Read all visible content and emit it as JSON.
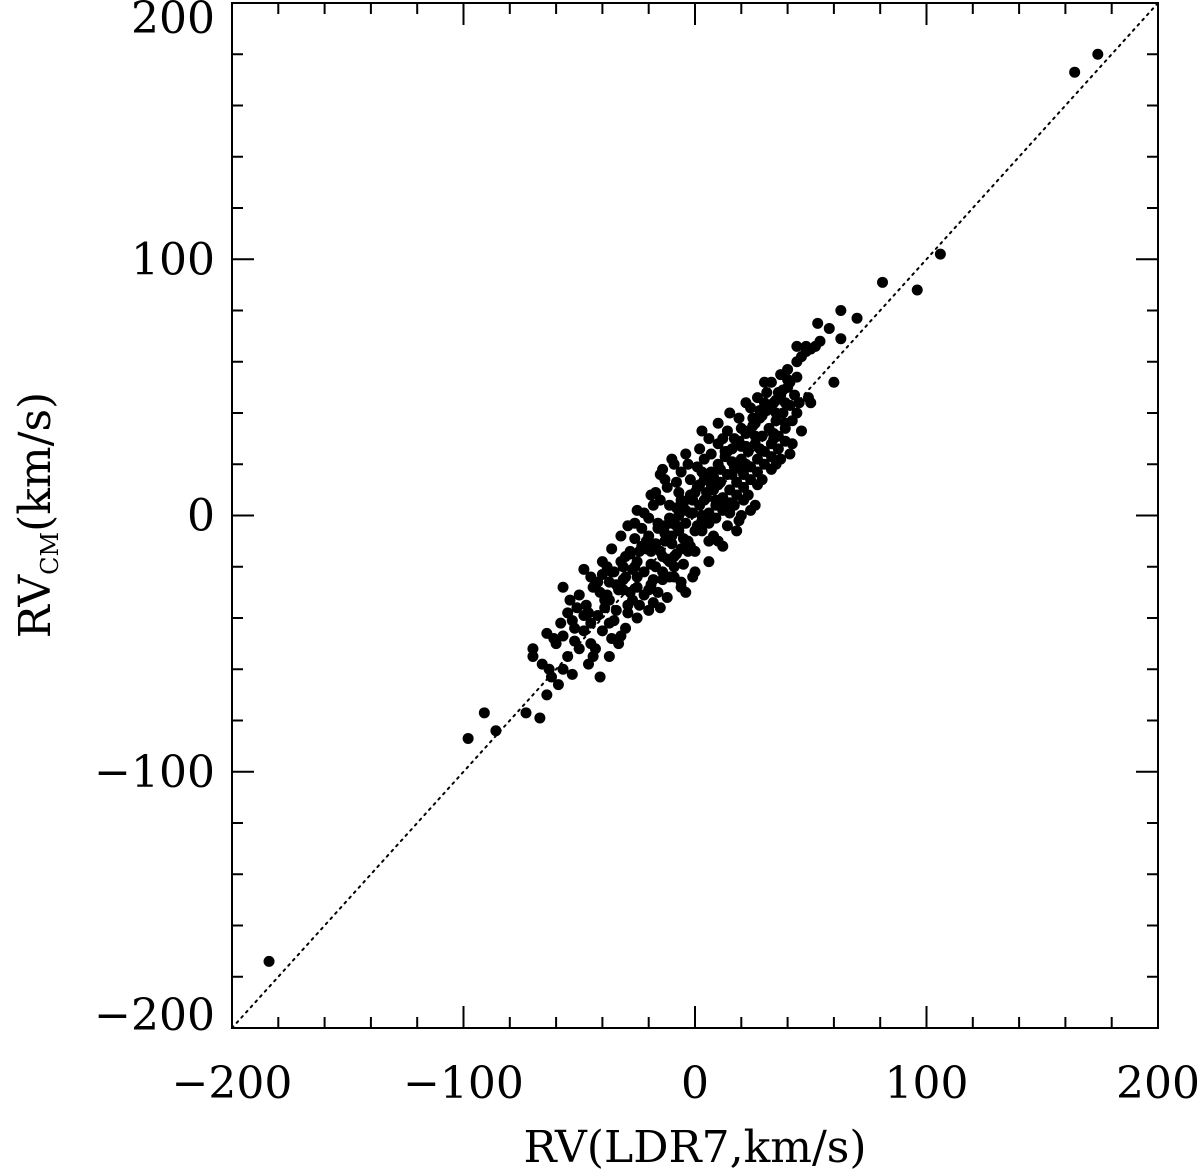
{
  "chart_data": {
    "type": "scatter",
    "xlabel": "RV(LDR7,km/s)",
    "ylabel_main": "RV",
    "ylabel_sub": "CM",
    "ylabel_rest": "(km/s)",
    "xlim": [
      -200,
      200
    ],
    "ylim": [
      -200,
      200
    ],
    "xticks": [
      -200,
      -100,
      0,
      100,
      200
    ],
    "yticks": [
      -200,
      -100,
      0,
      100,
      200
    ],
    "xtick_labels": [
      "−200",
      "−100",
      "0",
      "100",
      "200"
    ],
    "ytick_labels": [
      "−200",
      "−100",
      "0",
      "100",
      "200"
    ],
    "reference_line": {
      "style": "dotted",
      "x": [
        -200,
        200
      ],
      "y": [
        -200,
        200
      ]
    },
    "grid": false,
    "points": [
      [
        -184,
        -174
      ],
      [
        -98,
        -87
      ],
      [
        -91,
        -77
      ],
      [
        -86,
        -84
      ],
      [
        -73,
        -77
      ],
      [
        -67,
        -79
      ],
      [
        -64,
        -70
      ],
      [
        -70,
        -52
      ],
      [
        -70,
        -55
      ],
      [
        -66,
        -58
      ],
      [
        -63,
        -60
      ],
      [
        -62,
        -63
      ],
      [
        -64,
        -46
      ],
      [
        -61,
        -48
      ],
      [
        -57,
        -47
      ],
      [
        -57,
        -60
      ],
      [
        -55,
        -55
      ],
      [
        -52,
        -49
      ],
      [
        -50,
        -52
      ],
      [
        -48,
        -39
      ],
      [
        -45,
        -50
      ],
      [
        -43,
        -52
      ],
      [
        -40,
        -45
      ],
      [
        -39,
        -36
      ],
      [
        -37,
        -33
      ],
      [
        -35,
        -41
      ],
      [
        -33,
        -50
      ],
      [
        -32,
        -47
      ],
      [
        -30,
        -44
      ],
      [
        -28,
        -30
      ],
      [
        -57,
        -28
      ],
      [
        -55,
        -38
      ],
      [
        -53,
        -41
      ],
      [
        -50,
        -31
      ],
      [
        -47,
        -35
      ],
      [
        -45,
        -42
      ],
      [
        -42,
        -26
      ],
      [
        -40,
        -23
      ],
      [
        -38,
        -31
      ],
      [
        -36,
        -22
      ],
      [
        -34,
        -27
      ],
      [
        -32,
        -18
      ],
      [
        -30,
        -24
      ],
      [
        -28,
        -15
      ],
      [
        -26,
        -20
      ],
      [
        -25,
        -28
      ],
      [
        -23,
        -12
      ],
      [
        -22,
        -31
      ],
      [
        -20,
        -8
      ],
      [
        -19,
        -19
      ],
      [
        -18,
        -25
      ],
      [
        -16,
        -3
      ],
      [
        -15,
        -14
      ],
      [
        -14,
        -22
      ],
      [
        -13,
        -7
      ],
      [
        -12,
        -17
      ],
      [
        -11,
        -1
      ],
      [
        -10,
        -11
      ],
      [
        -9,
        -20
      ],
      [
        -8,
        3
      ],
      [
        -7,
        -6
      ],
      [
        -6,
        -13
      ],
      [
        -5,
        5
      ],
      [
        -4,
        -3
      ],
      [
        -3,
        -10
      ],
      [
        -2,
        8
      ],
      [
        -1,
        1
      ],
      [
        0,
        -6
      ],
      [
        1,
        11
      ],
      [
        2,
        4
      ],
      [
        3,
        -2
      ],
      [
        4,
        14
      ],
      [
        5,
        7
      ],
      [
        6,
        1
      ],
      [
        7,
        17
      ],
      [
        8,
        10
      ],
      [
        9,
        4
      ],
      [
        10,
        20
      ],
      [
        11,
        13
      ],
      [
        12,
        7
      ],
      [
        13,
        23
      ],
      [
        14,
        16
      ],
      [
        15,
        10
      ],
      [
        16,
        26
      ],
      [
        17,
        19
      ],
      [
        18,
        13
      ],
      [
        19,
        29
      ],
      [
        20,
        22
      ],
      [
        21,
        16
      ],
      [
        22,
        32
      ],
      [
        23,
        25
      ],
      [
        24,
        19
      ],
      [
        25,
        35
      ],
      [
        26,
        28
      ],
      [
        27,
        22
      ],
      [
        28,
        38
      ],
      [
        29,
        31
      ],
      [
        30,
        25
      ],
      [
        31,
        41
      ],
      [
        32,
        34
      ],
      [
        33,
        28
      ],
      [
        34,
        44
      ],
      [
        35,
        37
      ],
      [
        36,
        31
      ],
      [
        37,
        47
      ],
      [
        38,
        40
      ],
      [
        39,
        34
      ],
      [
        40,
        50
      ],
      [
        41,
        43
      ],
      [
        42,
        37
      ],
      [
        -34,
        -37
      ],
      [
        -31,
        -29
      ],
      [
        -29,
        -38
      ],
      [
        -27,
        -33
      ],
      [
        -25,
        -18
      ],
      [
        -24,
        -35
      ],
      [
        -22,
        -22
      ],
      [
        -21,
        -13
      ],
      [
        -19,
        -27
      ],
      [
        -17,
        -11
      ],
      [
        -16,
        -30
      ],
      [
        -14,
        -16
      ],
      [
        -13,
        -4
      ],
      [
        -11,
        -24
      ],
      [
        -10,
        -8
      ],
      [
        -8,
        -15
      ],
      [
        -7,
        0
      ],
      [
        -5,
        -19
      ],
      [
        -4,
        2
      ],
      [
        -2,
        -12
      ],
      [
        -1,
        6
      ],
      [
        1,
        -4
      ],
      [
        2,
        12
      ],
      [
        3,
        0
      ],
      [
        5,
        9
      ],
      [
        6,
        -3
      ],
      [
        8,
        15
      ],
      [
        9,
        6
      ],
      [
        11,
        18
      ],
      [
        12,
        2
      ],
      [
        14,
        25
      ],
      [
        15,
        5
      ],
      [
        17,
        30
      ],
      [
        18,
        8
      ],
      [
        20,
        27
      ],
      [
        21,
        11
      ],
      [
        23,
        33
      ],
      [
        24,
        14
      ],
      [
        26,
        36
      ],
      [
        27,
        17
      ],
      [
        29,
        39
      ],
      [
        30,
        20
      ],
      [
        32,
        42
      ],
      [
        33,
        23
      ],
      [
        35,
        45
      ],
      [
        36,
        26
      ],
      [
        38,
        49
      ],
      [
        39,
        29
      ],
      [
        41,
        52
      ],
      [
        -3,
        20
      ],
      [
        -8,
        13
      ],
      [
        -12,
        11
      ],
      [
        -15,
        6
      ],
      [
        -18,
        4
      ],
      [
        -20,
        -1
      ],
      [
        -23,
        -5
      ],
      [
        -26,
        -9
      ],
      [
        -28,
        -14
      ],
      [
        -30,
        -16
      ],
      [
        -35,
        -22
      ],
      [
        -38,
        -20
      ],
      [
        -41,
        -30
      ],
      [
        -44,
        -28
      ],
      [
        -46,
        -38
      ],
      [
        -36,
        -48
      ],
      [
        -25,
        -40
      ],
      [
        -18,
        -34
      ],
      [
        -12,
        -32
      ],
      [
        -6,
        -26
      ],
      [
        0,
        -22
      ],
      [
        6,
        -18
      ],
      [
        12,
        -12
      ],
      [
        18,
        -6
      ],
      [
        24,
        2
      ],
      [
        19,
        -2
      ],
      [
        10,
        -10
      ],
      [
        -15,
        16
      ],
      [
        -9,
        20
      ],
      [
        -4,
        24
      ],
      [
        4,
        22
      ],
      [
        10,
        28
      ],
      [
        14,
        33
      ],
      [
        19,
        38
      ],
      [
        22,
        44
      ],
      [
        27,
        46
      ],
      [
        31,
        48
      ],
      [
        37,
        55
      ],
      [
        40,
        57
      ],
      [
        44,
        60
      ],
      [
        46,
        62
      ],
      [
        48,
        64
      ],
      [
        50,
        65
      ],
      [
        52,
        66
      ],
      [
        54,
        68
      ],
      [
        44,
        66
      ],
      [
        48,
        66
      ],
      [
        44,
        54
      ],
      [
        40,
        53
      ],
      [
        45,
        44
      ],
      [
        50,
        44
      ],
      [
        53,
        75
      ],
      [
        58,
        73
      ],
      [
        63,
        80
      ],
      [
        63,
        69
      ],
      [
        60,
        52
      ],
      [
        70,
        77
      ],
      [
        81,
        91
      ],
      [
        96,
        88
      ],
      [
        106,
        102
      ],
      [
        164,
        173
      ],
      [
        174,
        180
      ],
      [
        33,
        52
      ],
      [
        36,
        48
      ],
      [
        28,
        41
      ],
      [
        25,
        38
      ],
      [
        22,
        27
      ],
      [
        16,
        21
      ],
      [
        12,
        30
      ],
      [
        7,
        24
      ],
      [
        3,
        17
      ],
      [
        -2,
        14
      ],
      [
        -7,
        9
      ],
      [
        -11,
        4
      ],
      [
        -16,
        -5
      ],
      [
        -21,
        -10
      ],
      [
        -24,
        -14
      ],
      [
        -27,
        -21
      ],
      [
        -31,
        -25
      ],
      [
        -33,
        -29
      ],
      [
        -39,
        -33
      ],
      [
        -42,
        -39
      ],
      [
        -48,
        -45
      ],
      [
        -52,
        -44
      ],
      [
        -44,
        -55
      ],
      [
        -37,
        -42
      ],
      [
        -29,
        -35
      ],
      [
        -20,
        -29
      ],
      [
        -14,
        -25
      ],
      [
        -9,
        -16
      ],
      [
        -3,
        -14
      ],
      [
        3,
        -6
      ],
      [
        9,
        -1
      ],
      [
        15,
        1
      ],
      [
        21,
        6
      ],
      [
        27,
        12
      ],
      [
        33,
        18
      ],
      [
        37,
        22
      ],
      [
        42,
        28
      ],
      [
        46,
        33
      ],
      [
        43,
        47
      ],
      [
        30,
        52
      ],
      [
        34,
        32
      ],
      [
        26,
        31
      ],
      [
        20,
        18
      ],
      [
        13,
        25
      ],
      [
        7,
        12
      ],
      [
        1,
        19
      ],
      [
        -6,
        6
      ],
      [
        -10,
        -3
      ],
      [
        -17,
        9
      ],
      [
        -22,
        1
      ],
      [
        -26,
        -3
      ],
      [
        -32,
        -8
      ],
      [
        -36,
        -13
      ],
      [
        -40,
        -18
      ],
      [
        -45,
        -24
      ],
      [
        -48,
        -21
      ],
      [
        -51,
        -36
      ],
      [
        -54,
        -33
      ],
      [
        -58,
        -42
      ],
      [
        -60,
        -50
      ],
      [
        -17,
        -20
      ],
      [
        -13,
        -10
      ],
      [
        -8,
        -4
      ],
      [
        -2,
        1
      ],
      [
        4,
        6
      ],
      [
        10,
        12
      ],
      [
        16,
        16
      ],
      [
        22,
        20
      ],
      [
        28,
        26
      ],
      [
        34,
        30
      ],
      [
        39,
        36
      ],
      [
        44,
        40
      ],
      [
        49,
        46
      ],
      [
        0,
        9
      ],
      [
        5,
        15
      ],
      [
        -5,
        -9
      ],
      [
        11,
        4
      ],
      [
        -11,
        -18
      ],
      [
        17,
        4
      ],
      [
        -19,
        -14
      ],
      [
        23,
        8
      ],
      [
        -25,
        -24
      ],
      [
        29,
        14
      ],
      [
        -31,
        -20
      ],
      [
        35,
        20
      ],
      [
        -37,
        -26
      ],
      [
        41,
        24
      ],
      [
        8,
        -8
      ],
      [
        14,
        -4
      ],
      [
        20,
        0
      ],
      [
        26,
        4
      ],
      [
        -13,
        14
      ],
      [
        -19,
        8
      ],
      [
        -25,
        2
      ],
      [
        -29,
        -4
      ],
      [
        2,
        26
      ],
      [
        6,
        30
      ],
      [
        10,
        36
      ],
      [
        15,
        40
      ],
      [
        20,
        34
      ],
      [
        24,
        42
      ],
      [
        30,
        44
      ],
      [
        35,
        40
      ],
      [
        39,
        44
      ],
      [
        -1,
        -24
      ],
      [
        -6,
        -28
      ],
      [
        -9,
        -24
      ],
      [
        -4,
        -30
      ],
      [
        -37,
        -55
      ],
      [
        -46,
        -58
      ],
      [
        -53,
        -62
      ],
      [
        -59,
        -66
      ],
      [
        -41,
        -63
      ],
      [
        6,
        -10
      ],
      [
        0,
        -14
      ],
      [
        -15,
        -36
      ],
      [
        -20,
        -37
      ],
      [
        3,
        33
      ],
      [
        -6,
        17
      ],
      [
        -10,
        22
      ],
      [
        -14,
        18
      ]
    ]
  }
}
